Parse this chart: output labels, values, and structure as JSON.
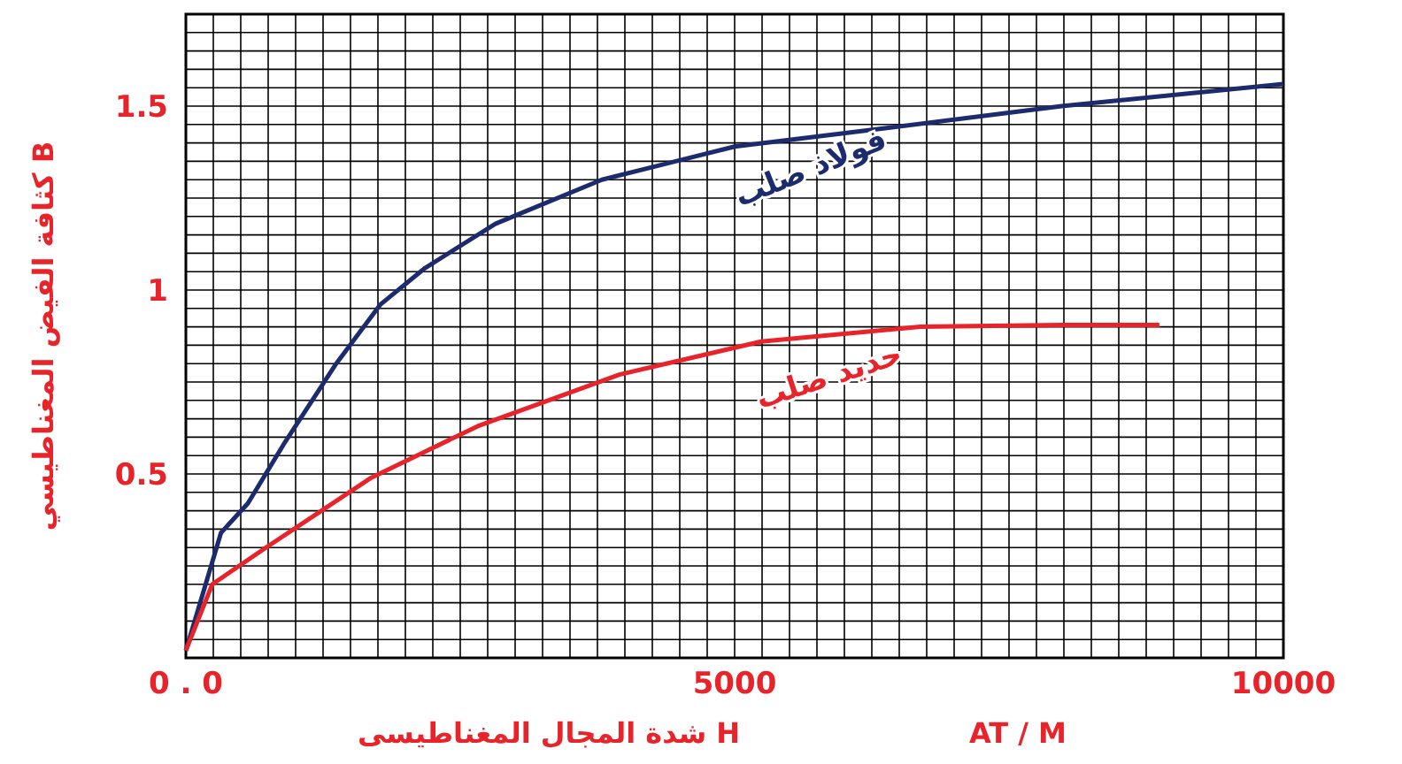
{
  "chart_data": {
    "type": "line",
    "xlabel": "شدة المجال المغناطيسى H",
    "ylabel": "كثافة الفيض المغناطيسي B",
    "annotations": [
      "AT / M"
    ],
    "xlim": [
      0,
      10000
    ],
    "ylim": [
      0,
      1.75
    ],
    "xticks": [
      {
        "value": 0,
        "label": "0 . 0"
      },
      5000,
      10000
    ],
    "yticks": [
      0.5,
      1,
      1.5
    ],
    "grid": true,
    "legend": false,
    "marker": "none",
    "line_style": "solid",
    "series": [
      {
        "name": "فولاذ صلب",
        "color": "#1c2a6e",
        "x": [
          0,
          320,
          565,
          890,
          1370,
          1770,
          2180,
          2820,
          3790,
          5000,
          6370,
          7980,
          10000
        ],
        "values": [
          0.02,
          0.34,
          0.42,
          0.58,
          0.8,
          0.96,
          1.06,
          1.18,
          1.3,
          1.39,
          1.44,
          1.5,
          1.56
        ]
      },
      {
        "name": "حديد صلب",
        "color": "#e8242a",
        "x": [
          0,
          240,
          730,
          1690,
          2660,
          3950,
          5240,
          6690,
          7980,
          8870
        ],
        "values": [
          0.02,
          0.2,
          0.3,
          0.49,
          0.63,
          0.77,
          0.86,
          0.9,
          0.905,
          0.905
        ]
      }
    ]
  }
}
